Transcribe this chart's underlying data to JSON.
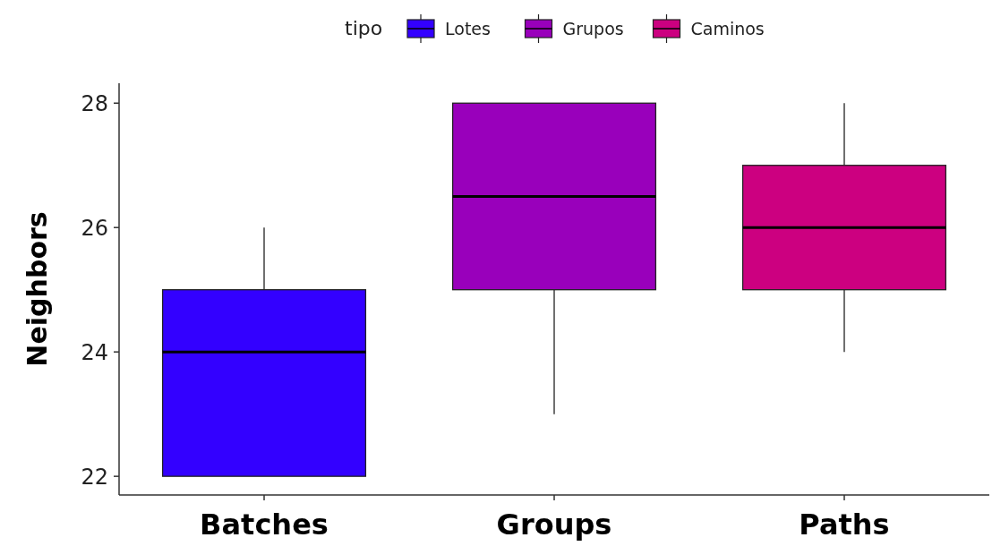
{
  "chart_data": {
    "type": "box",
    "ylabel": "Neighbors",
    "legend_title": "tipo",
    "legend": "top",
    "grid": false,
    "categories": [
      "Batches",
      "Groups",
      "Paths"
    ],
    "ylim": [
      21.7,
      28.32
    ],
    "yticks": [
      22,
      24,
      26,
      28
    ],
    "series": [
      {
        "name": "Lotes",
        "color": "#3300ff",
        "boxes": [
          {
            "low": 22,
            "q1": 22,
            "median": 24,
            "q3": 25,
            "high": 26
          },
          null,
          null
        ]
      },
      {
        "name": "Grupos",
        "color": "#9900bb",
        "boxes": [
          null,
          {
            "low": 23,
            "q1": 25,
            "median": 26.5,
            "q3": 28,
            "high": 28
          },
          null
        ]
      },
      {
        "name": "Caminos",
        "color": "#cc0080",
        "boxes": [
          null,
          null,
          {
            "low": 24,
            "q1": 25,
            "median": 26,
            "q3": 27,
            "high": 28
          }
        ]
      }
    ]
  }
}
